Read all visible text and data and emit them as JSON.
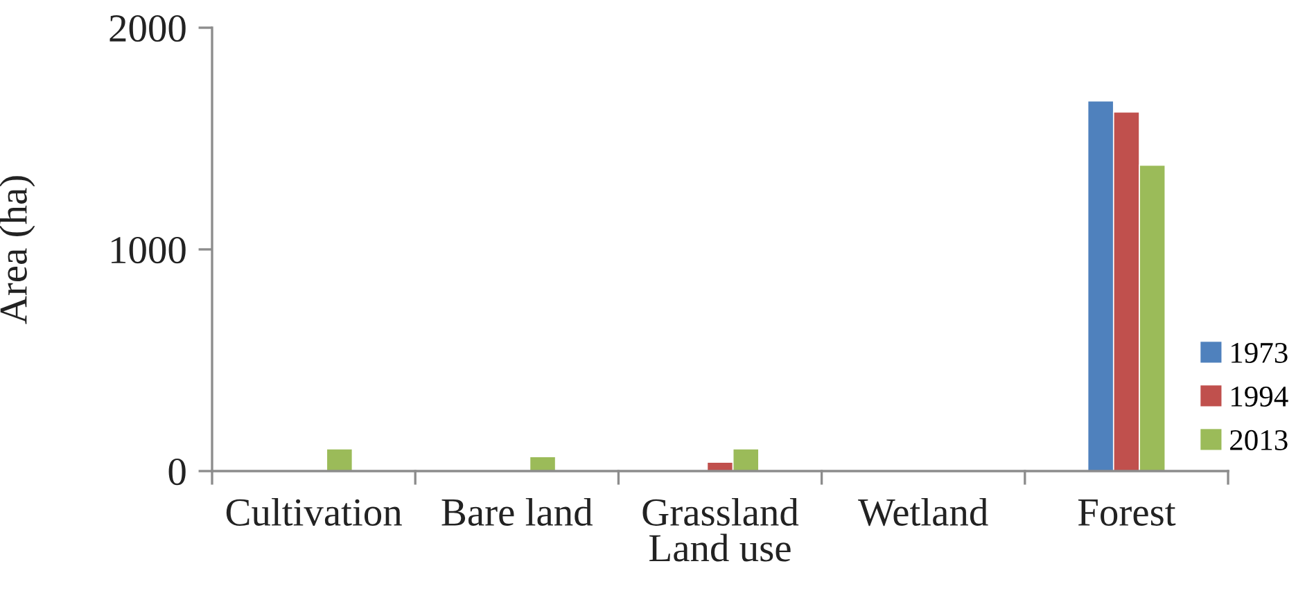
{
  "chart_data": {
    "type": "bar",
    "xlabel": "Land use",
    "ylabel": "Area (ha)",
    "categories": [
      "Cultivation",
      "Bare land",
      "Grassland",
      "Wetland",
      "Forest"
    ],
    "series": [
      {
        "name": "1973",
        "color": "#4f81bd",
        "values": [
          null,
          null,
          null,
          null,
          1670
        ]
      },
      {
        "name": "1994",
        "color": "#c0504d",
        "values": [
          null,
          null,
          40,
          null,
          1620
        ]
      },
      {
        "name": "2013",
        "color": "#9bbb59",
        "values": [
          100,
          65,
          100,
          null,
          1380
        ]
      }
    ],
    "ylim": [
      0,
      2000
    ],
    "yticks": [
      0,
      1000,
      2000
    ],
    "grid": false,
    "legend": "right"
  }
}
